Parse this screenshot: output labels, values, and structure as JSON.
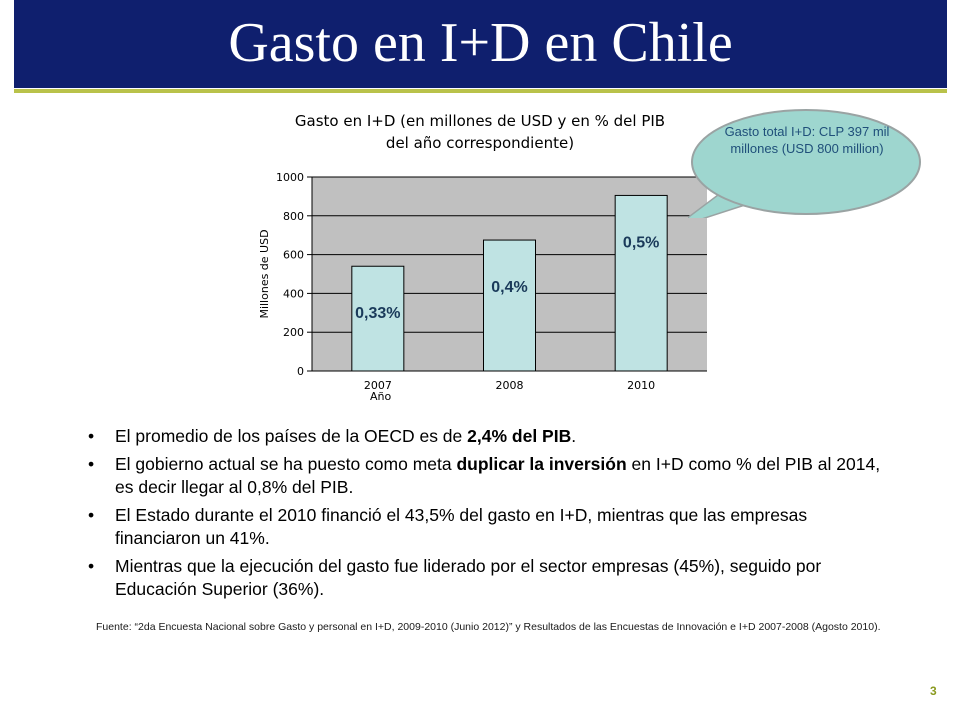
{
  "title": "Gasto en I+D en Chile",
  "chart_title_line1": "Gasto en I+D (en millones de USD y en % del PIB",
  "chart_title_line2": "del año correspondiente)",
  "callout": "Gasto total I+D: CLP 397 mil millones (USD 800 million)",
  "chart_data": {
    "type": "bar",
    "categories": [
      "2007",
      "2008",
      "2010"
    ],
    "values": [
      540,
      675,
      905
    ],
    "bar_labels": [
      "0,33%",
      "0,4%",
      "0,5%"
    ],
    "title": "Gasto en I+D (en millones de USD y en % del PIB del año correspondiente)",
    "xlabel": "Año",
    "ylabel": "Millones de USD",
    "ylim": [
      0,
      1000
    ],
    "yticks": [
      "0",
      "200",
      "400",
      "600",
      "800",
      "1000"
    ],
    "grid": true,
    "bar_color": "#bfe3e3"
  },
  "bullets": [
    {
      "pre": "El promedio de los países de la OECD es de ",
      "bold": "2,4% del PIB",
      "post": "."
    },
    {
      "pre": "El gobierno actual se ha puesto como meta ",
      "bold": "duplicar la inversión",
      "post": " en I+D como % del PIB al 2014, es decir llegar al 0,8% del PIB."
    },
    {
      "pre": "El Estado durante el 2010 financió el 43,5% del gasto en I+D, mientras que las empresas financiaron un 41%.",
      "bold": "",
      "post": ""
    },
    {
      "pre": "Mientras que la ejecución del gasto fue liderado por el sector empresas (45%), seguido por Educación Superior (36%).",
      "bold": "",
      "post": ""
    }
  ],
  "source": "Fuente: “2da Encuesta Nacional sobre Gasto y personal en I+D, 2009-2010  (Junio 2012)”  y Resultados de las Encuestas de Innovación e I+D 2007-2008  (Agosto 2010).",
  "page_number": "3",
  "colors": {
    "title_bg": "#0f1f6e",
    "rule": "#b9c24a",
    "callout_fill": "#9ed6cf",
    "callout_text": "#1f4f7a"
  }
}
